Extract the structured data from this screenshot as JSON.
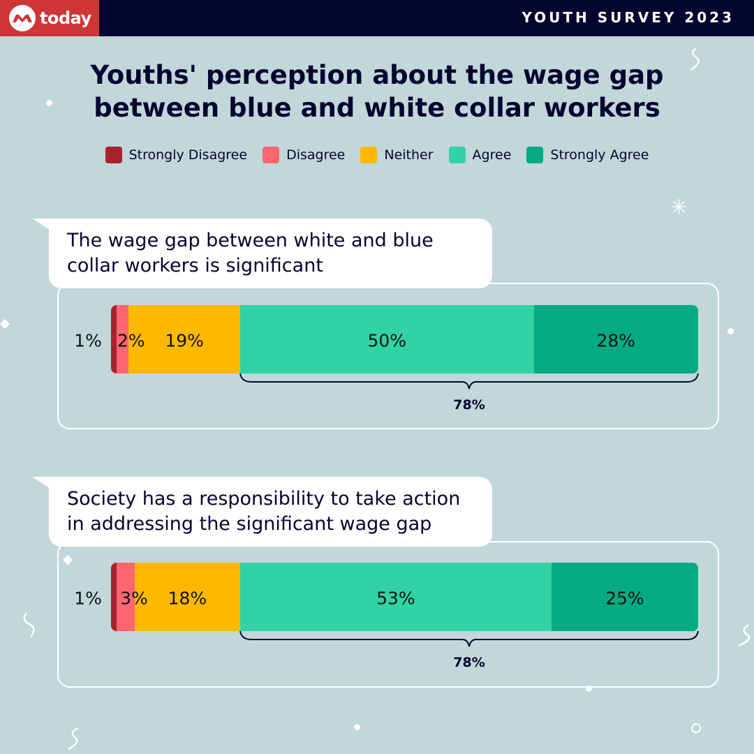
{
  "header": {
    "brand": "today",
    "badge": "YOUTH SURVEY 2023"
  },
  "title": "Youths' perception about the wage gap between blue and white collar workers",
  "chart_data": {
    "type": "bar",
    "orientation": "horizontal-stacked-100",
    "categories": [
      "The wage gap between white and blue collar workers is significant",
      "Society has a responsibility to take action in addressing the significant wage gap"
    ],
    "series": [
      {
        "name": "Strongly Disagree",
        "color": "#a8212f",
        "values": [
          1,
          1
        ]
      },
      {
        "name": "Disagree",
        "color": "#ff6670",
        "values": [
          2,
          3
        ]
      },
      {
        "name": "Neither",
        "color": "#ffb800",
        "values": [
          19,
          18
        ]
      },
      {
        "name": "Agree",
        "color": "#31d3a4",
        "values": [
          50,
          53
        ]
      },
      {
        "name": "Strongly Agree",
        "color": "#04ab82",
        "values": [
          28,
          25
        ]
      }
    ],
    "value_labels": [
      [
        "1%",
        "2%",
        "19%",
        "50%",
        "28%"
      ],
      [
        "1%",
        "3%",
        "18%",
        "53%",
        "25%"
      ]
    ],
    "agree_totals": [
      "78%",
      "78%"
    ],
    "legend_position": "top",
    "grid": false
  }
}
